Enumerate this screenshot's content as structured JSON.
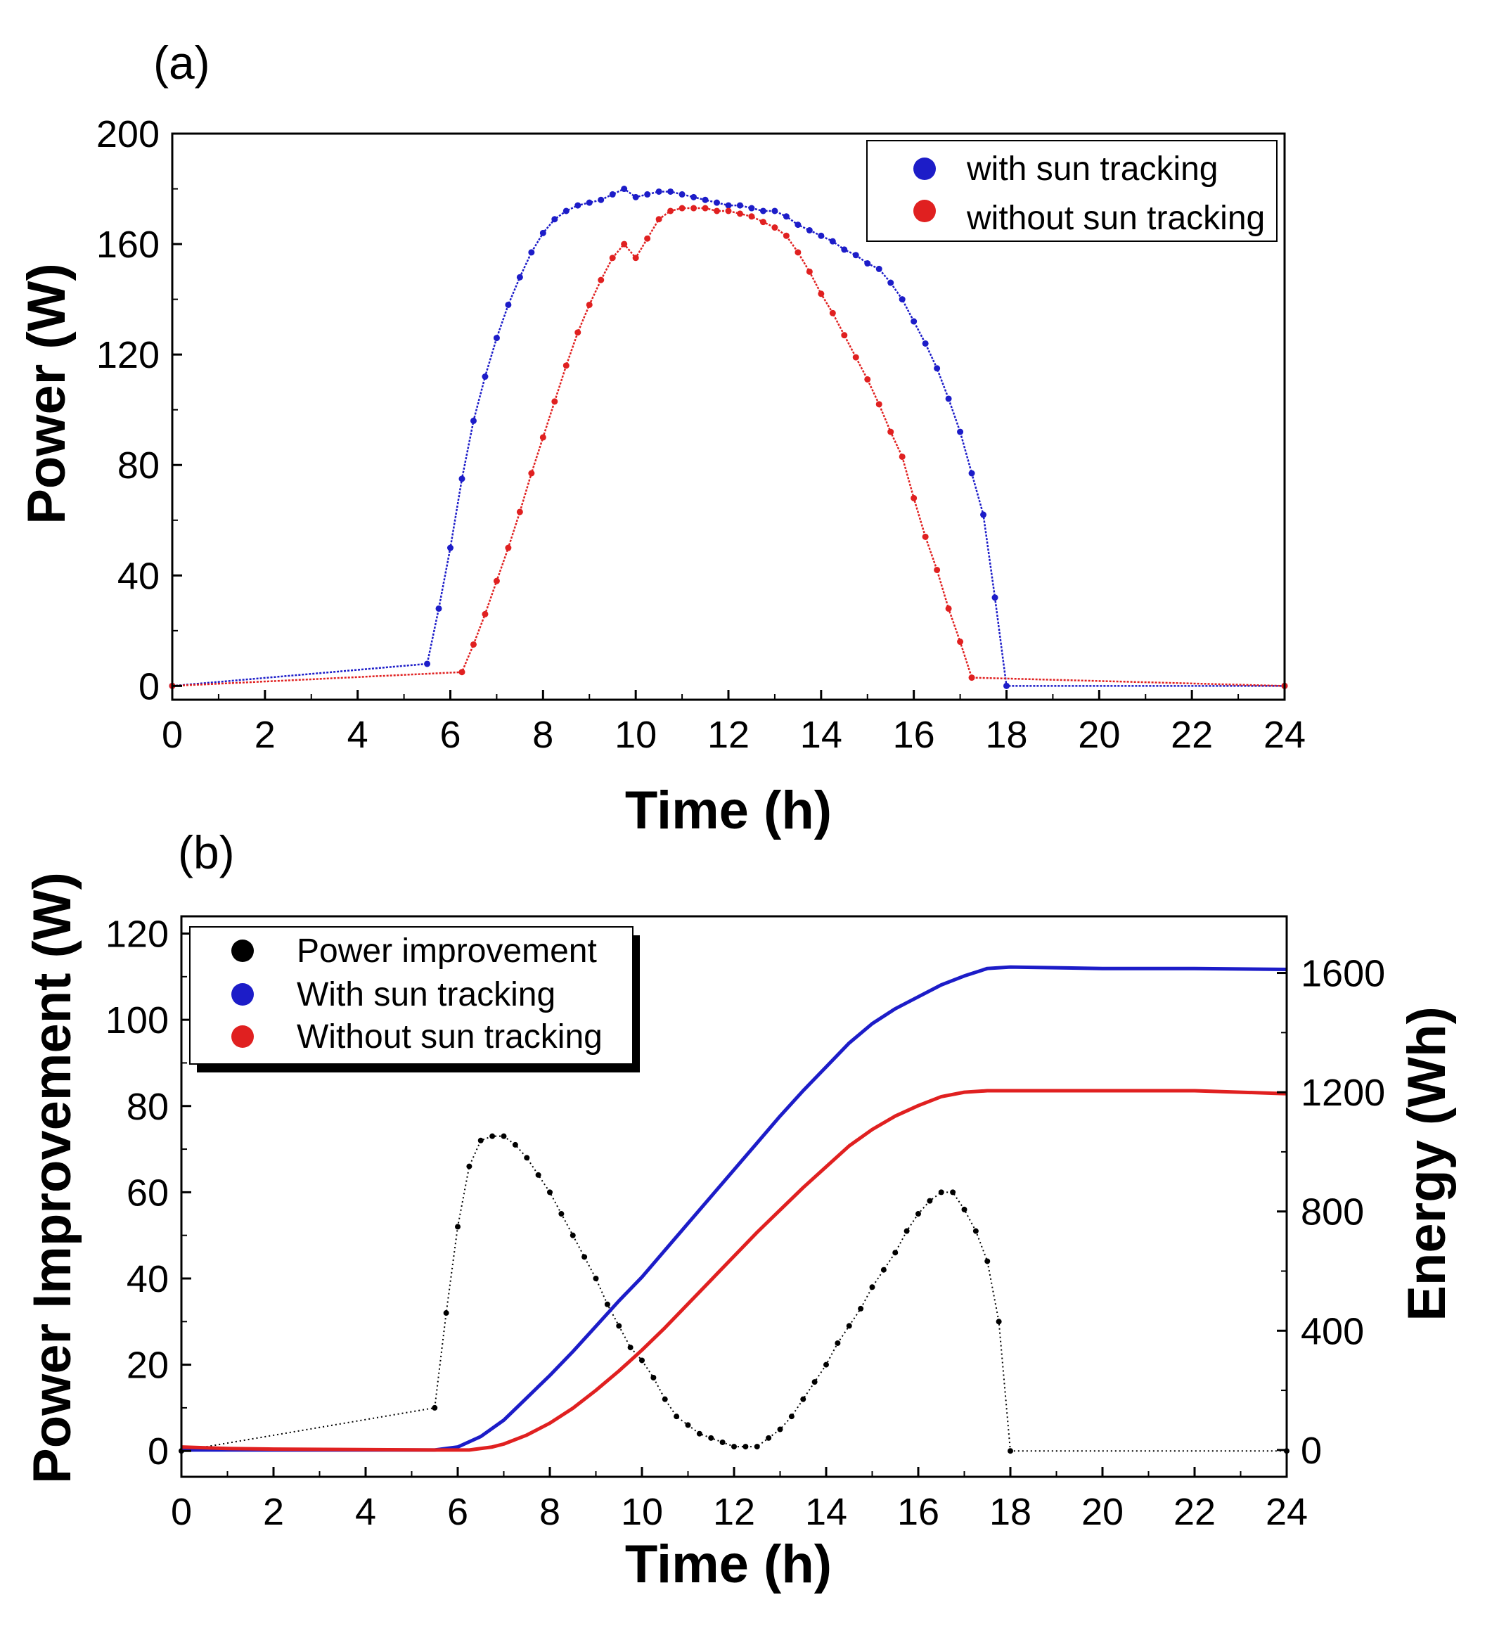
{
  "chart_data": [
    {
      "panel_label": "(a)",
      "type": "scatter",
      "xlabel": "Time (h)",
      "ylabel": "Power (W)",
      "xlim": [
        0,
        24
      ],
      "ylim": [
        -5,
        200
      ],
      "xticks": [
        "0",
        "2",
        "4",
        "6",
        "8",
        "10",
        "12",
        "14",
        "16",
        "18",
        "20",
        "22",
        "24"
      ],
      "yticks": [
        "0",
        "40",
        "80",
        "120",
        "160",
        "200"
      ],
      "legend": {
        "position": "top-right",
        "entries": [
          "with sun tracking",
          "without sun tracking"
        ]
      },
      "series": [
        {
          "name": "with sun tracking",
          "color": "#1c1cc8",
          "x": [
            0,
            5.5,
            5.75,
            6,
            6.25,
            6.5,
            6.75,
            7,
            7.25,
            7.5,
            7.75,
            8,
            8.25,
            8.5,
            8.75,
            9,
            9.25,
            9.5,
            9.75,
            10,
            10.25,
            10.5,
            10.75,
            11,
            11.25,
            11.5,
            11.75,
            12,
            12.25,
            12.5,
            12.75,
            13,
            13.25,
            13.5,
            13.75,
            14,
            14.25,
            14.5,
            14.75,
            15,
            15.25,
            15.5,
            15.75,
            16,
            16.25,
            16.5,
            16.75,
            17,
            17.25,
            17.5,
            17.75,
            18,
            24
          ],
          "y": [
            0,
            8,
            28,
            50,
            75,
            96,
            112,
            126,
            138,
            148,
            157,
            164,
            169,
            172,
            174,
            175,
            176,
            178,
            180,
            177,
            178,
            179,
            179,
            178,
            177,
            176,
            175,
            174,
            174,
            173,
            172,
            172,
            170,
            167,
            165,
            163,
            161,
            158,
            156,
            153,
            151,
            146,
            140,
            132,
            124,
            115,
            104,
            92,
            77,
            62,
            32,
            0,
            0
          ]
        },
        {
          "name": "without sun tracking",
          "color": "#e02020",
          "x": [
            0,
            6.25,
            6.5,
            6.75,
            7,
            7.25,
            7.5,
            7.75,
            8,
            8.25,
            8.5,
            8.75,
            9,
            9.25,
            9.5,
            9.75,
            10,
            10.25,
            10.5,
            10.75,
            11,
            11.25,
            11.5,
            11.75,
            12,
            12.25,
            12.5,
            12.75,
            13,
            13.25,
            13.5,
            13.75,
            14,
            14.25,
            14.5,
            14.75,
            15,
            15.25,
            15.5,
            15.75,
            16,
            16.25,
            16.5,
            16.75,
            17,
            17.25,
            24
          ],
          "y": [
            0,
            5,
            15,
            26,
            38,
            50,
            63,
            77,
            90,
            103,
            116,
            128,
            138,
            147,
            155,
            160,
            155,
            162,
            169,
            172,
            173,
            173,
            173,
            172,
            172,
            171,
            170,
            168,
            166,
            163,
            157,
            150,
            142,
            135,
            127,
            119,
            111,
            102,
            92,
            83,
            68,
            54,
            42,
            28,
            16,
            3,
            0
          ]
        }
      ]
    },
    {
      "panel_label": "(b)",
      "type": "line",
      "xlabel": "Time (h)",
      "ylabel": "Power Improvement (W)",
      "y2label": "Energy (Wh)",
      "xlim": [
        0,
        24
      ],
      "ylim": [
        -6,
        124
      ],
      "y2lim": [
        -90,
        1790
      ],
      "xticks": [
        "0",
        "2",
        "4",
        "6",
        "8",
        "10",
        "12",
        "14",
        "16",
        "18",
        "20",
        "22",
        "24"
      ],
      "yticks": [
        "0",
        "20",
        "40",
        "60",
        "80",
        "100",
        "120"
      ],
      "y2ticks": [
        "0",
        "400",
        "800",
        "1200",
        "1600"
      ],
      "legend": {
        "position": "top-left",
        "entries": [
          "Power improvement",
          "With sun tracking",
          "Without sun tracking"
        ]
      },
      "series": [
        {
          "name": "Power improvement",
          "axis": "left",
          "color": "#000000",
          "x": [
            0,
            5.5,
            5.75,
            6,
            6.25,
            6.5,
            6.75,
            7,
            7.25,
            7.5,
            7.75,
            8,
            8.25,
            8.5,
            8.75,
            9,
            9.25,
            9.5,
            9.75,
            10,
            10.25,
            10.5,
            10.75,
            11,
            11.25,
            11.5,
            11.75,
            12,
            12.25,
            12.5,
            12.75,
            13,
            13.25,
            13.5,
            13.75,
            14,
            14.25,
            14.5,
            14.75,
            15,
            15.25,
            15.5,
            15.75,
            16,
            16.25,
            16.5,
            16.75,
            17,
            17.25,
            17.5,
            17.75,
            18,
            24
          ],
          "y": [
            0,
            10,
            32,
            52,
            66,
            72,
            73,
            73,
            71,
            68,
            64,
            60,
            55,
            50,
            45,
            40,
            34,
            29,
            24,
            21,
            17,
            12,
            8,
            6,
            4,
            3,
            2,
            1,
            1,
            1,
            3,
            5,
            8,
            12,
            16,
            20,
            25,
            29,
            33,
            38,
            42,
            46,
            51,
            55,
            58,
            60,
            60,
            56,
            51,
            44,
            30,
            0,
            0
          ]
        },
        {
          "name": "With sun tracking",
          "axis": "right",
          "color": "#1c1cc8",
          "x": [
            0,
            5.5,
            6,
            6.5,
            7,
            7.5,
            8,
            8.5,
            9,
            9.5,
            10,
            10.5,
            11,
            11.5,
            12,
            12.5,
            13,
            13.5,
            14,
            14.5,
            15,
            15.5,
            16,
            16.5,
            17,
            17.5,
            18,
            20,
            22,
            24
          ],
          "y": [
            0,
            0,
            10,
            45,
            100,
            175,
            250,
            330,
            415,
            500,
            580,
            670,
            760,
            850,
            940,
            1030,
            1120,
            1205,
            1285,
            1365,
            1430,
            1480,
            1520,
            1560,
            1590,
            1615,
            1620,
            1615,
            1615,
            1612
          ]
        },
        {
          "name": "Without sun tracking",
          "axis": "right",
          "color": "#e02020",
          "x": [
            0,
            1,
            2,
            5.5,
            6.25,
            6.75,
            7,
            7.5,
            8,
            8.5,
            9,
            9.5,
            10,
            10.5,
            11,
            11.5,
            12,
            12.5,
            13,
            13.5,
            14,
            14.5,
            15,
            15.5,
            16,
            16.5,
            17,
            17.5,
            18,
            20,
            22,
            24
          ],
          "y": [
            10,
            5,
            3,
            0,
            0,
            10,
            20,
            50,
            90,
            140,
            200,
            265,
            335,
            410,
            490,
            570,
            650,
            730,
            805,
            880,
            950,
            1020,
            1075,
            1120,
            1155,
            1185,
            1200,
            1205,
            1205,
            1205,
            1205,
            1195
          ]
        }
      ]
    }
  ]
}
